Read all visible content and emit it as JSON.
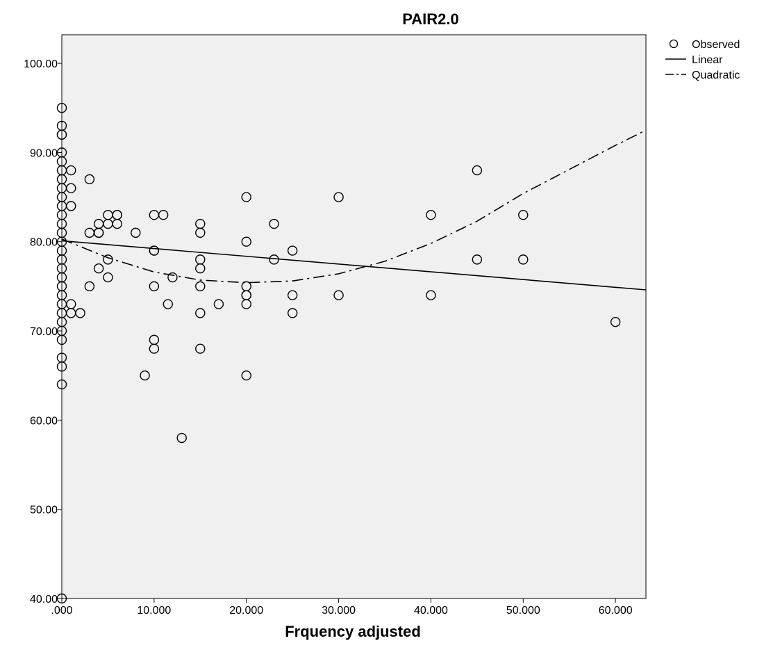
{
  "chart_data": {
    "type": "scatter",
    "title": "PAIR2.0",
    "xlabel": "Frquency adjusted",
    "ylabel": "",
    "xlim": [
      0,
      63.3
    ],
    "ylim": [
      40,
      103.2
    ],
    "x_ticks": [
      0,
      10,
      20,
      30,
      40,
      50,
      60
    ],
    "x_tick_labels": [
      ".000",
      "10.000",
      "20.000",
      "30.000",
      "40.000",
      "50.000",
      "60.000"
    ],
    "y_ticks": [
      40,
      50,
      60,
      70,
      80,
      90,
      100
    ],
    "y_tick_labels": [
      "40.00",
      "50.00",
      "60.00",
      "70.00",
      "80.00",
      "90.00",
      "100.00"
    ],
    "grid": false,
    "legend_position": "right-top",
    "colors": {
      "background": "#f0f0f0",
      "marker": "#000000",
      "line": "#000000"
    },
    "series": [
      {
        "name": "Observed",
        "kind": "scatter",
        "points": [
          [
            0,
            95
          ],
          [
            0,
            93
          ],
          [
            0,
            92
          ],
          [
            0,
            92
          ],
          [
            0,
            90
          ],
          [
            0,
            89
          ],
          [
            0,
            88
          ],
          [
            0,
            87
          ],
          [
            0,
            86
          ],
          [
            0,
            85
          ],
          [
            0,
            84
          ],
          [
            0,
            83
          ],
          [
            0,
            82
          ],
          [
            0,
            81
          ],
          [
            0,
            80
          ],
          [
            0,
            79
          ],
          [
            0,
            78
          ],
          [
            0,
            77
          ],
          [
            0,
            76
          ],
          [
            0,
            75
          ],
          [
            0,
            74
          ],
          [
            0,
            73
          ],
          [
            0,
            72
          ],
          [
            0,
            71
          ],
          [
            0,
            70
          ],
          [
            0,
            69
          ],
          [
            0,
            67
          ],
          [
            0,
            66
          ],
          [
            0,
            64
          ],
          [
            0,
            40
          ],
          [
            1,
            88
          ],
          [
            1,
            86
          ],
          [
            1,
            84
          ],
          [
            1,
            73
          ],
          [
            1,
            72
          ],
          [
            2,
            72
          ],
          [
            3,
            87
          ],
          [
            3,
            81
          ],
          [
            3,
            75
          ],
          [
            4,
            82
          ],
          [
            4,
            81
          ],
          [
            4,
            81
          ],
          [
            4,
            77
          ],
          [
            5,
            83
          ],
          [
            5,
            82
          ],
          [
            5,
            78
          ],
          [
            5,
            76
          ],
          [
            6,
            83
          ],
          [
            6,
            83
          ],
          [
            6,
            82
          ],
          [
            8,
            81
          ],
          [
            9,
            65
          ],
          [
            10,
            83
          ],
          [
            10,
            79
          ],
          [
            10,
            79
          ],
          [
            10,
            75
          ],
          [
            10,
            69
          ],
          [
            10,
            68
          ],
          [
            11,
            83
          ],
          [
            11.5,
            73
          ],
          [
            12,
            76
          ],
          [
            13,
            58
          ],
          [
            15,
            82
          ],
          [
            15,
            81
          ],
          [
            15,
            78
          ],
          [
            15,
            77
          ],
          [
            15,
            75
          ],
          [
            15,
            72
          ],
          [
            15,
            68
          ],
          [
            17,
            73
          ],
          [
            20,
            85
          ],
          [
            20,
            80
          ],
          [
            20,
            75
          ],
          [
            20,
            74
          ],
          [
            20,
            74
          ],
          [
            20,
            73
          ],
          [
            20,
            65
          ],
          [
            23,
            82
          ],
          [
            23,
            78
          ],
          [
            25,
            79
          ],
          [
            25,
            74
          ],
          [
            25,
            72
          ],
          [
            30,
            85
          ],
          [
            30,
            74
          ],
          [
            40,
            83
          ],
          [
            40,
            74
          ],
          [
            45,
            88
          ],
          [
            45,
            78
          ],
          [
            50,
            83
          ],
          [
            50,
            78
          ],
          [
            60,
            71
          ]
        ]
      },
      {
        "name": "Linear",
        "kind": "line",
        "dash": "solid",
        "x": [
          0,
          63.3
        ],
        "y": [
          80.1,
          74.6
        ]
      },
      {
        "name": "Quadratic",
        "kind": "line",
        "dash": "dashdot",
        "x": [
          0,
          5,
          10,
          15,
          20,
          25,
          30,
          35,
          40,
          45,
          50,
          55,
          60,
          63.3
        ],
        "y": [
          80.3,
          78.2,
          76.6,
          75.7,
          75.4,
          75.6,
          76.4,
          77.8,
          79.8,
          82.3,
          85.4,
          88.1,
          90.8,
          92.5
        ]
      }
    ]
  }
}
